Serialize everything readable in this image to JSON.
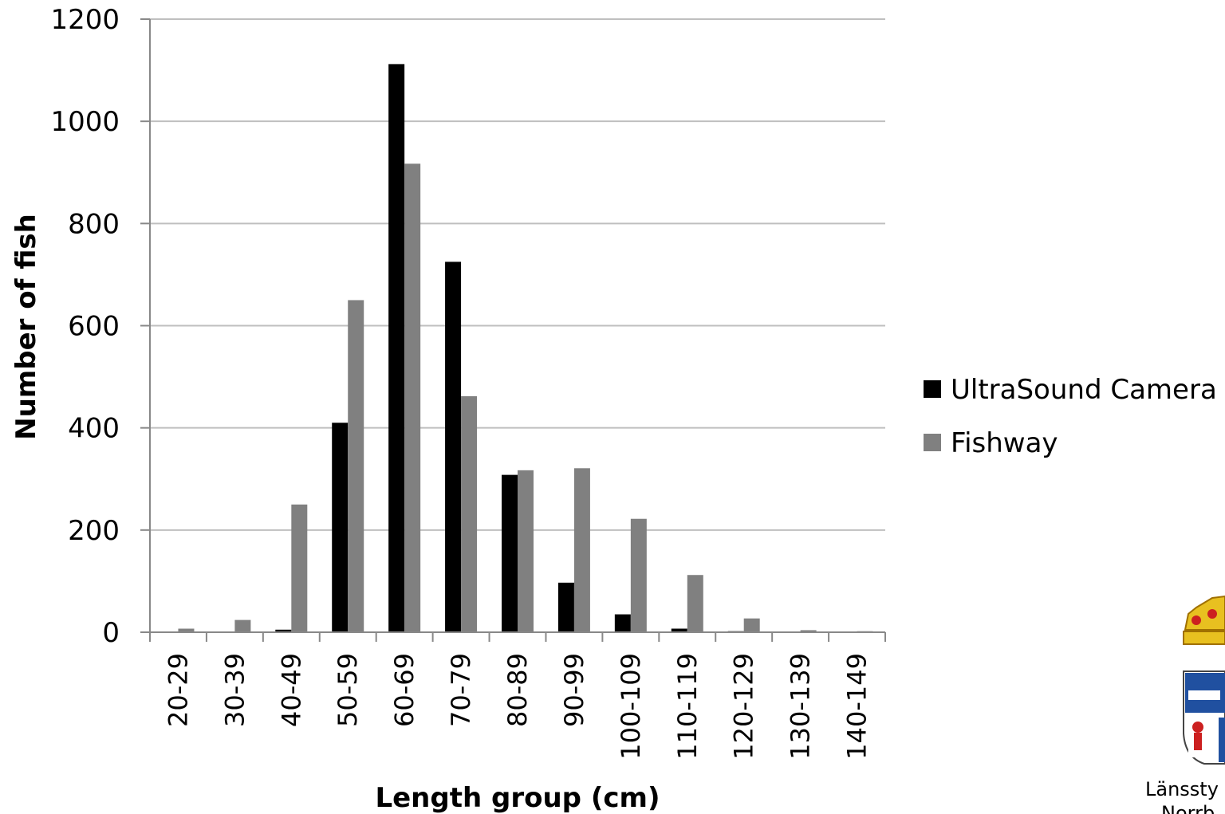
{
  "chart_data": {
    "type": "bar",
    "categories": [
      "20-29",
      "30-39",
      "40-49",
      "50-59",
      "60-69",
      "70-79",
      "80-89",
      "90-99",
      "100-109",
      "110-119",
      "120-129",
      "130-139",
      "140-149"
    ],
    "series": [
      {
        "name": "UltraSound Camera",
        "color": "#000000",
        "values": [
          0,
          0,
          5,
          410,
          1112,
          725,
          308,
          97,
          35,
          7,
          2,
          0,
          0
        ]
      },
      {
        "name": "Fishway",
        "color": "#808080",
        "values": [
          7,
          24,
          250,
          650,
          917,
          462,
          317,
          321,
          222,
          112,
          27,
          4,
          2
        ]
      }
    ],
    "title": "",
    "xlabel": "Length group (cm)",
    "ylabel": "Number of fish",
    "ylim": [
      0,
      1200
    ],
    "yticks": [
      0,
      200,
      400,
      600,
      800,
      1000,
      1200
    ],
    "grid": true,
    "legend_position": "right"
  },
  "logo": {
    "icon": "county-coat-of-arms-icon",
    "text": "Länssty",
    "text2": "Norrb"
  }
}
